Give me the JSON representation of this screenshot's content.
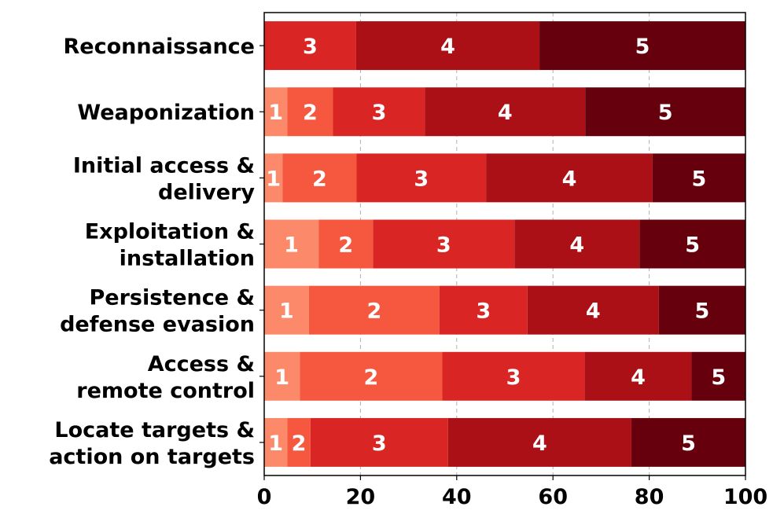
{
  "chart_data": {
    "type": "stacked-bar-horizontal",
    "title": "",
    "xlabel": "",
    "ylabel": "",
    "xlim": [
      0,
      100
    ],
    "xticks": [
      0,
      20,
      40,
      60,
      80,
      100
    ],
    "grid": "x-dashed",
    "legend": "none",
    "colors": {
      "1": "#fc8a6a",
      "2": "#f5573f",
      "3": "#d92624",
      "4": "#aa1016",
      "5": "#67000d"
    },
    "categories": [
      {
        "lines": [
          "Reconnaissance"
        ]
      },
      {
        "lines": [
          "Weaponization"
        ]
      },
      {
        "lines": [
          "Initial access &",
          "delivery"
        ]
      },
      {
        "lines": [
          "Exploitation &",
          "installation"
        ]
      },
      {
        "lines": [
          "Persistence &",
          "defense evasion"
        ]
      },
      {
        "lines": [
          "Access &",
          "remote control"
        ]
      },
      {
        "lines": [
          "Locate targets &",
          "action on targets"
        ]
      }
    ],
    "series": [
      {
        "name": "1",
        "values": [
          0,
          4.8,
          3.8,
          11.3,
          9.3,
          7.4,
          4.8
        ]
      },
      {
        "name": "2",
        "values": [
          0,
          9.5,
          15.4,
          11.3,
          27.1,
          29.6,
          4.8
        ]
      },
      {
        "name": "3",
        "values": [
          19.1,
          19.1,
          26.9,
          29.4,
          18.3,
          29.6,
          28.6
        ]
      },
      {
        "name": "4",
        "values": [
          38.1,
          33.3,
          34.6,
          26.0,
          27.3,
          22.2,
          38.1
        ]
      },
      {
        "name": "5",
        "values": [
          42.8,
          33.3,
          19.3,
          22.0,
          18.0,
          11.2,
          23.7
        ]
      }
    ]
  }
}
